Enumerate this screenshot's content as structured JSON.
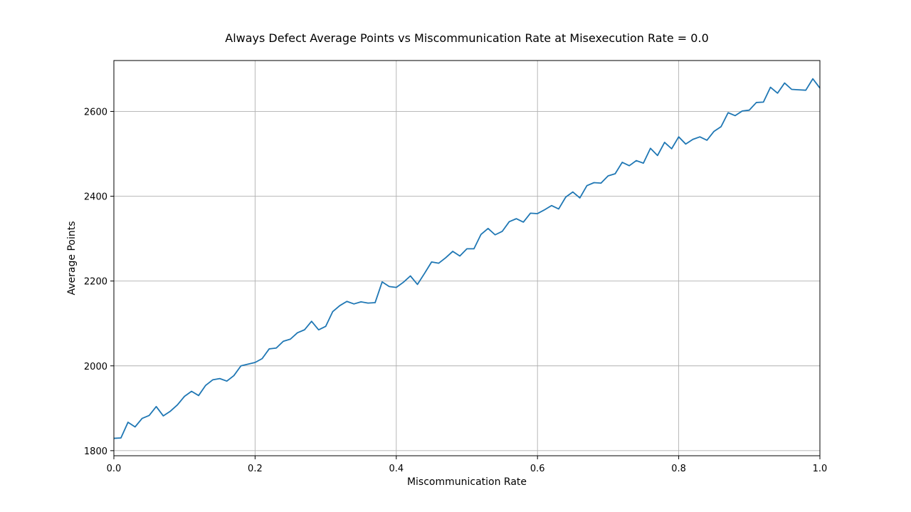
{
  "chart_data": {
    "type": "line",
    "title": "Always Defect Average Points vs Miscommunication Rate at Misexecution Rate = 0.0",
    "xlabel": "Miscommunication Rate",
    "ylabel": "Average Points",
    "xlim": [
      0.0,
      1.0
    ],
    "ylim": [
      1788,
      2720
    ],
    "xticks": [
      0.0,
      0.2,
      0.4,
      0.6,
      0.8,
      1.0
    ],
    "xtick_labels": [
      "0.0",
      "0.2",
      "0.4",
      "0.6",
      "0.8",
      "1.0"
    ],
    "yticks": [
      1800,
      2000,
      2200,
      2400,
      2600
    ],
    "ytick_labels": [
      "1800",
      "2000",
      "2200",
      "2400",
      "2600"
    ],
    "grid": true,
    "color": "#1f77b4",
    "x": [
      0.0,
      0.01,
      0.02,
      0.03,
      0.04,
      0.05,
      0.06,
      0.07,
      0.08,
      0.09,
      0.1,
      0.11,
      0.12,
      0.13,
      0.14,
      0.15,
      0.16,
      0.17,
      0.18,
      0.19,
      0.2,
      0.21,
      0.22,
      0.23,
      0.24,
      0.25,
      0.26,
      0.27,
      0.28,
      0.29,
      0.3,
      0.31,
      0.32,
      0.33,
      0.34,
      0.35,
      0.36,
      0.37,
      0.38,
      0.39,
      0.4,
      0.41,
      0.42,
      0.43,
      0.44,
      0.45,
      0.46,
      0.47,
      0.48,
      0.49,
      0.5,
      0.51,
      0.52,
      0.53,
      0.54,
      0.55,
      0.56,
      0.57,
      0.58,
      0.59,
      0.6,
      0.61,
      0.62,
      0.63,
      0.64,
      0.65,
      0.66,
      0.67,
      0.68,
      0.69,
      0.7,
      0.71,
      0.72,
      0.73,
      0.74,
      0.75,
      0.76,
      0.77,
      0.78,
      0.79,
      0.8,
      0.81,
      0.82,
      0.83,
      0.84,
      0.85,
      0.86,
      0.87,
      0.88,
      0.89,
      0.9,
      0.91,
      0.92,
      0.93,
      0.94,
      0.95,
      0.96,
      0.97,
      0.98,
      0.99,
      1.0
    ],
    "y": [
      1829,
      1830,
      1867,
      1856,
      1876,
      1883,
      1904,
      1882,
      1893,
      1908,
      1928,
      1940,
      1930,
      1954,
      1967,
      1970,
      1964,
      1977,
      2000,
      2004,
      2008,
      2017,
      2040,
      2042,
      2058,
      2063,
      2078,
      2085,
      2105,
      2085,
      2093,
      2128,
      2142,
      2152,
      2146,
      2151,
      2148,
      2149,
      2198,
      2187,
      2185,
      2197,
      2212,
      2192,
      2218,
      2245,
      2242,
      2255,
      2270,
      2259,
      2276,
      2276,
      2310,
      2324,
      2309,
      2317,
      2340,
      2347,
      2339,
      2360,
      2359,
      2368,
      2378,
      2370,
      2398,
      2410,
      2396,
      2425,
      2432,
      2431,
      2448,
      2453,
      2480,
      2472,
      2484,
      2478,
      2513,
      2496,
      2527,
      2512,
      2540,
      2523,
      2534,
      2540,
      2532,
      2553,
      2564,
      2597,
      2590,
      2601,
      2603,
      2621,
      2622,
      2657,
      2643,
      2667,
      2652,
      2651,
      2650,
      2677,
      2655
    ]
  }
}
